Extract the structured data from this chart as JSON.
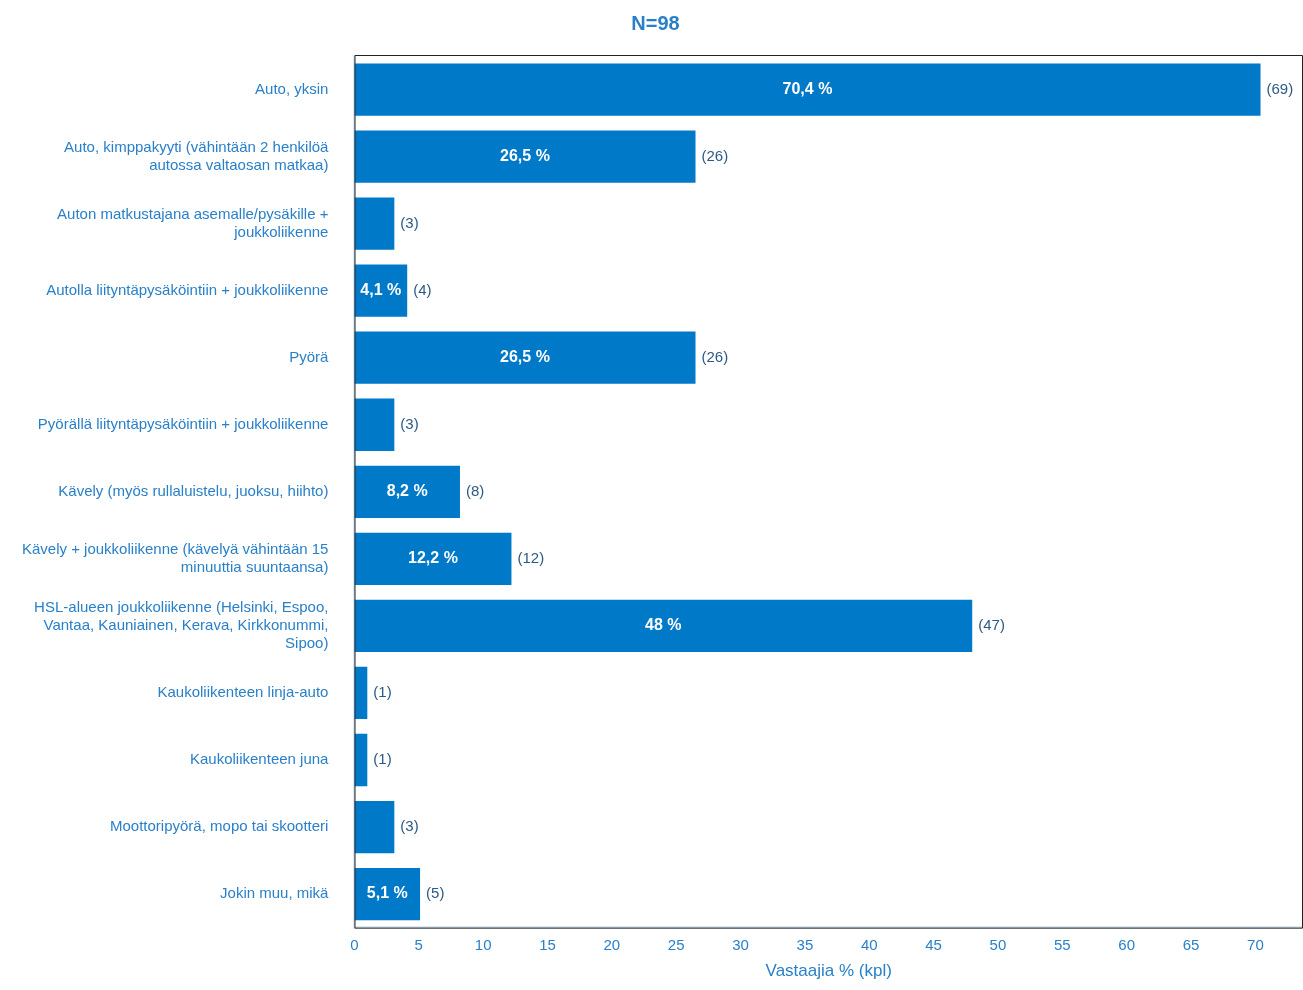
{
  "chart_data": {
    "type": "bar",
    "orientation": "horizontal",
    "title": "N=98",
    "xlabel": "Vastaajia % (kpl)",
    "categories": [
      "Auto, yksin",
      "Auto, kimppakyyti (vähintään 2 henkilöä autossa valtaosan matkaa)",
      "Auton matkustajana asemalle/pysäkille + joukkoliikenne",
      "Autolla liityntäpysäköintiin + joukkoliikenne",
      "Pyörä",
      "Pyörällä liityntäpysäköintiin + joukkoliikenne",
      "Kävely (myös rullaluistelu, juoksu, hiihto)",
      "Kävely + joukkoliikenne (kävelyä vähintään 15 minuuttia suuntaansa)",
      "HSL-alueen joukkoliikenne (Helsinki, Espoo, Vantaa, Kauniainen, Kerava, Kirkkonummi, Sipoo)",
      "Kaukoliikenteen linja-auto",
      "Kaukoliikenteen juna",
      "Moottoripyörä, mopo tai skootteri",
      "Jokin muu, mikä"
    ],
    "values": [
      70.4,
      26.5,
      3.1,
      4.1,
      26.5,
      3.1,
      8.2,
      12.2,
      48,
      1.0,
      1.0,
      3.1,
      5.1
    ],
    "value_labels": [
      "70,4 %",
      "26,5 %",
      null,
      "4,1 %",
      "26,5 %",
      null,
      "8,2 %",
      "12,2 %",
      "48 %",
      null,
      null,
      null,
      "5,1 %"
    ],
    "color": "#0079c9",
    "xlim": [
      0,
      73.7
    ],
    "xticks": [
      0,
      5,
      10,
      15,
      20,
      25,
      30,
      35,
      40,
      45,
      50,
      55,
      60,
      65,
      70
    ],
    "grid": false,
    "legend": false,
    "annotations": [
      {
        "text": "(69)",
        "x": 70.4,
        "y": "Auto, yksin"
      },
      {
        "text": "(26)",
        "x": 26.5,
        "y": "Auto, kimppakyyti (vähintään 2 henkilöä autossa valtaosan matkaa)"
      },
      {
        "text": "(3)",
        "x": 3.1,
        "y": "Auton matkustajana asemalle/pysäkille + joukkoliikenne"
      },
      {
        "text": "(4)",
        "x": 4.1,
        "y": "Autolla liityntäpysäköintiin + joukkoliikenne"
      },
      {
        "text": "(26)",
        "x": 26.5,
        "y": "Pyörä"
      },
      {
        "text": "(3)",
        "x": 3.1,
        "y": "Pyörällä liityntäpysäköintiin + joukkoliikenne"
      },
      {
        "text": "(8)",
        "x": 8.2,
        "y": "Kävely (myös rullaluistelu, juoksu, hiihto)"
      },
      {
        "text": "(12)",
        "x": 12.2,
        "y": "Kävely + joukkoliikenne (kävelyä vähintään 15 minuuttia suuntaansa)"
      },
      {
        "text": "(47)",
        "x": 48,
        "y": "HSL-alueen joukkoliikenne (Helsinki, Espoo, Vantaa, Kauniainen, Kerava, Kirkkonummi, Sipoo)"
      },
      {
        "text": "(1)",
        "x": 1.0,
        "y": "Kaukoliikenteen linja-auto"
      },
      {
        "text": "(1)",
        "x": 1.0,
        "y": "Kaukoliikenteen juna"
      },
      {
        "text": "(3)",
        "x": 3.1,
        "y": "Moottoripyörä, mopo tai skootteri"
      },
      {
        "text": "(5)",
        "x": 5.1,
        "y": "Jokin muu, mikä"
      }
    ]
  }
}
